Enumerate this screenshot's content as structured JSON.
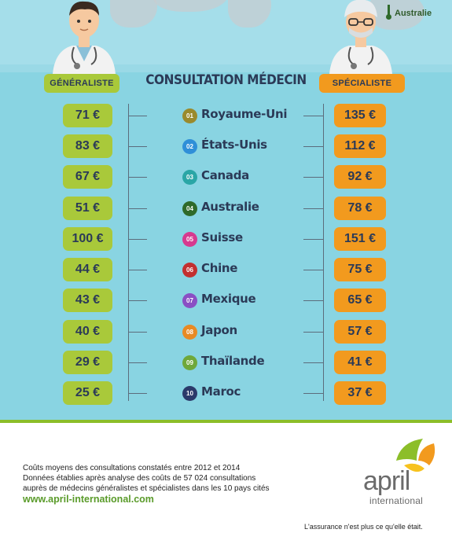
{
  "header": {
    "title": "CONSULTATION MÉDECIN",
    "generaliste_label": "GÉNÉRALISTE",
    "specialiste_label": "SPÉCIALISTE",
    "map_label": "Australie"
  },
  "rows": [
    {
      "num": "01",
      "country": "Royaume-Uni",
      "gen": "71 €",
      "spe": "135 €",
      "color": "#9a8a2c"
    },
    {
      "num": "02",
      "country": "États-Unis",
      "gen": "83 €",
      "spe": "112 €",
      "color": "#2f8fd8"
    },
    {
      "num": "03",
      "country": "Canada",
      "gen": "67 €",
      "spe": "92 €",
      "color": "#2aa6a6"
    },
    {
      "num": "04",
      "country": "Australie",
      "gen": "51 €",
      "spe": "78 €",
      "color": "#2f6a2a"
    },
    {
      "num": "05",
      "country": "Suisse",
      "gen": "100 €",
      "spe": "151 €",
      "color": "#d63a8f"
    },
    {
      "num": "06",
      "country": "Chine",
      "gen": "44 €",
      "spe": "75 €",
      "color": "#c23030"
    },
    {
      "num": "07",
      "country": "Mexique",
      "gen": "43 €",
      "spe": "65 €",
      "color": "#8a4fc4"
    },
    {
      "num": "08",
      "country": "Japon",
      "gen": "40 €",
      "spe": "57 €",
      "color": "#e88a24"
    },
    {
      "num": "09",
      "country": "Thaïlande",
      "gen": "29 €",
      "spe": "41 €",
      "color": "#6fa83a"
    },
    {
      "num": "10",
      "country": "Maroc",
      "gen": "25 €",
      "spe": "37 €",
      "color": "#2b3a6a"
    }
  ],
  "footer": {
    "line1": "Coûts moyens des consultations constatés entre 2012 et 2014",
    "line2": "Données établies après analyse des coûts de 57 024 consultations",
    "line3": "auprès de médecins généralistes et spécialistes dans les 10 pays cités",
    "url": "www.april-international.com",
    "tagline": "L'assurance n'est plus ce qu'elle était.",
    "logo_word": "april",
    "logo_sub": "international"
  },
  "colors": {
    "generaliste": "#a9c93a",
    "specialiste": "#f29a1e",
    "background": "#89d4e2",
    "text": "#2b3a57"
  }
}
